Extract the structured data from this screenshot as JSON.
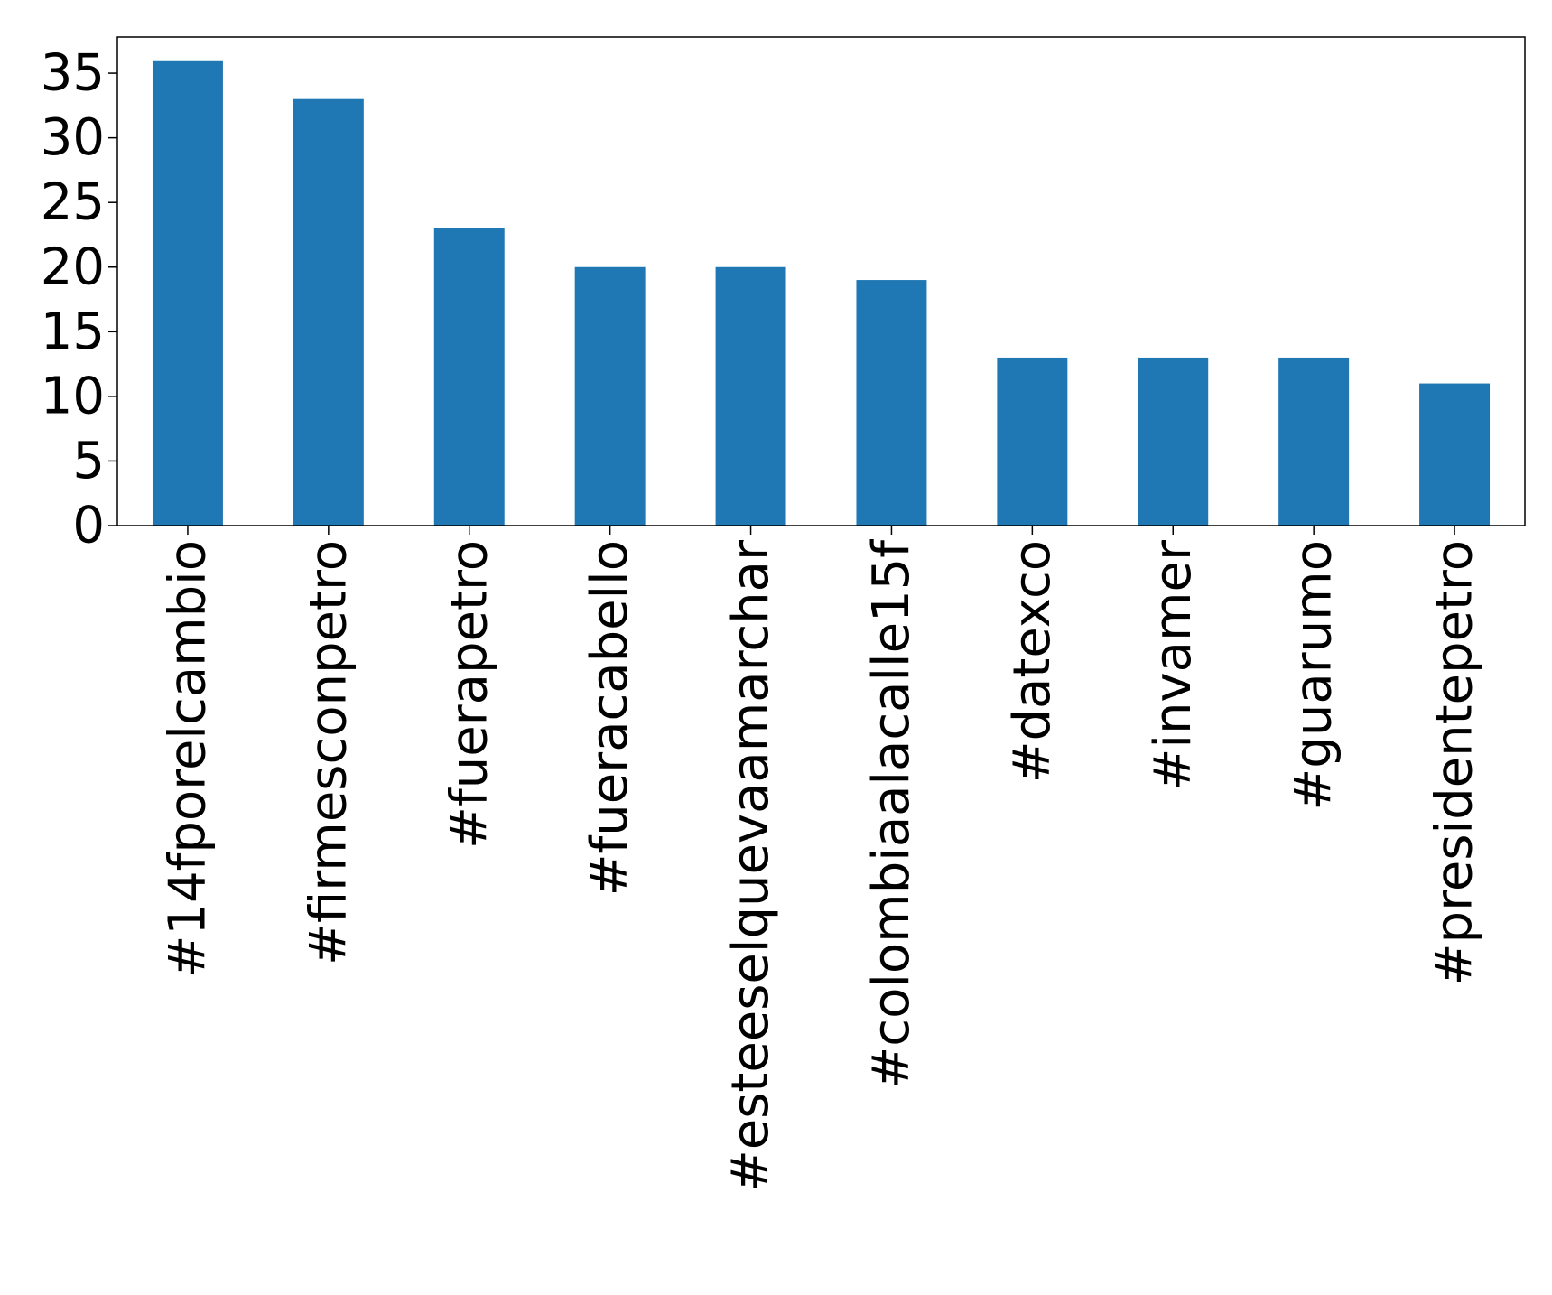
{
  "chart_data": {
    "type": "bar",
    "title": "",
    "xlabel": "",
    "ylabel": "",
    "categories": [
      "#14fporelcambio",
      "#firmesconpetro",
      "#fuerapetro",
      "#fueracabello",
      "#esteeselquevaamarchar",
      "#colombiaalacalle15f",
      "#datexco",
      "#invamer",
      "#guarumo",
      "#presidentepetro"
    ],
    "values": [
      36,
      33,
      23,
      20,
      20,
      19,
      13,
      13,
      13,
      11
    ],
    "ylim": [
      0,
      37.8
    ],
    "yticks": [
      "0",
      "5",
      "10",
      "15",
      "20",
      "25",
      "30",
      "35"
    ],
    "bar_color": "#1f77b4",
    "grid": false,
    "legend": "none"
  }
}
